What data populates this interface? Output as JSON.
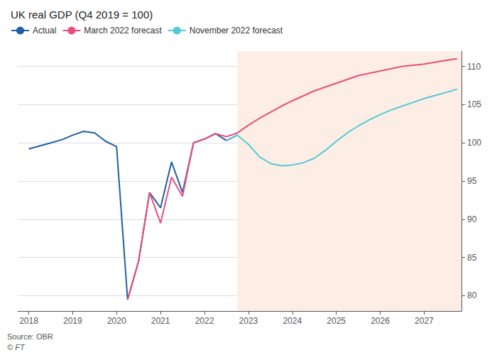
{
  "chart_data": {
    "type": "line",
    "title": "UK real GDP (Q4 2019 = 100)",
    "annotations": [
      "Source: OBR",
      "© FT"
    ],
    "xlim": [
      2017.75,
      2027.85
    ],
    "xticks": [
      2018,
      2019,
      2020,
      2021,
      2022,
      2023,
      2024,
      2025,
      2026,
      2027
    ],
    "ylim": [
      78,
      112
    ],
    "yticks": [
      80,
      85,
      90,
      95,
      100,
      105,
      110
    ],
    "grid": true,
    "legend": "upper left",
    "shade": {
      "from": 2022.75,
      "color": "#fceee4"
    },
    "series": [
      {
        "name": "Actual",
        "color": "#1f5fa6",
        "x": [
          2018.0,
          2018.25,
          2018.5,
          2018.75,
          2019.0,
          2019.25,
          2019.5,
          2019.75,
          2020.0,
          2020.25,
          2020.5,
          2020.75,
          2021.0,
          2021.25,
          2021.5,
          2021.75,
          2022.0,
          2022.25,
          2022.5,
          2022.75
        ],
        "values": [
          99.2,
          99.6,
          100.0,
          100.4,
          101.0,
          101.5,
          101.3,
          100.2,
          99.5,
          79.5,
          84.5,
          93.5,
          91.5,
          97.5,
          93.5,
          100.0,
          100.5,
          101.2,
          100.3,
          101.0
        ]
      },
      {
        "name": "March 2022 forecast",
        "color": "#e8507a",
        "x": [
          2020.25,
          2020.5,
          2020.75,
          2021.0,
          2021.25,
          2021.5,
          2021.75,
          2022.0,
          2022.25,
          2022.5,
          2022.75,
          2023.0,
          2023.25,
          2023.5,
          2023.75,
          2024.0,
          2024.5,
          2025.0,
          2025.5,
          2026.0,
          2026.5,
          2027.0,
          2027.5,
          2027.75
        ],
        "values": [
          79.5,
          84.5,
          93.5,
          89.5,
          95.5,
          93.0,
          100.0,
          100.5,
          101.2,
          100.8,
          101.3,
          102.3,
          103.2,
          104.0,
          104.8,
          105.5,
          106.8,
          107.8,
          108.8,
          109.4,
          110.0,
          110.3,
          110.8,
          111.0
        ]
      },
      {
        "name": "November 2022 forecast",
        "color": "#56c8d8",
        "x": [
          2022.5,
          2022.75,
          2023.0,
          2023.25,
          2023.5,
          2023.75,
          2024.0,
          2024.25,
          2024.5,
          2024.75,
          2025.0,
          2025.25,
          2025.5,
          2025.75,
          2026.0,
          2026.25,
          2026.5,
          2026.75,
          2027.0,
          2027.25,
          2027.5,
          2027.75
        ],
        "values": [
          100.3,
          101.0,
          99.8,
          98.2,
          97.3,
          97.0,
          97.1,
          97.4,
          98.0,
          99.0,
          100.2,
          101.3,
          102.2,
          103.0,
          103.7,
          104.3,
          104.8,
          105.3,
          105.8,
          106.2,
          106.6,
          107.0
        ]
      }
    ]
  }
}
